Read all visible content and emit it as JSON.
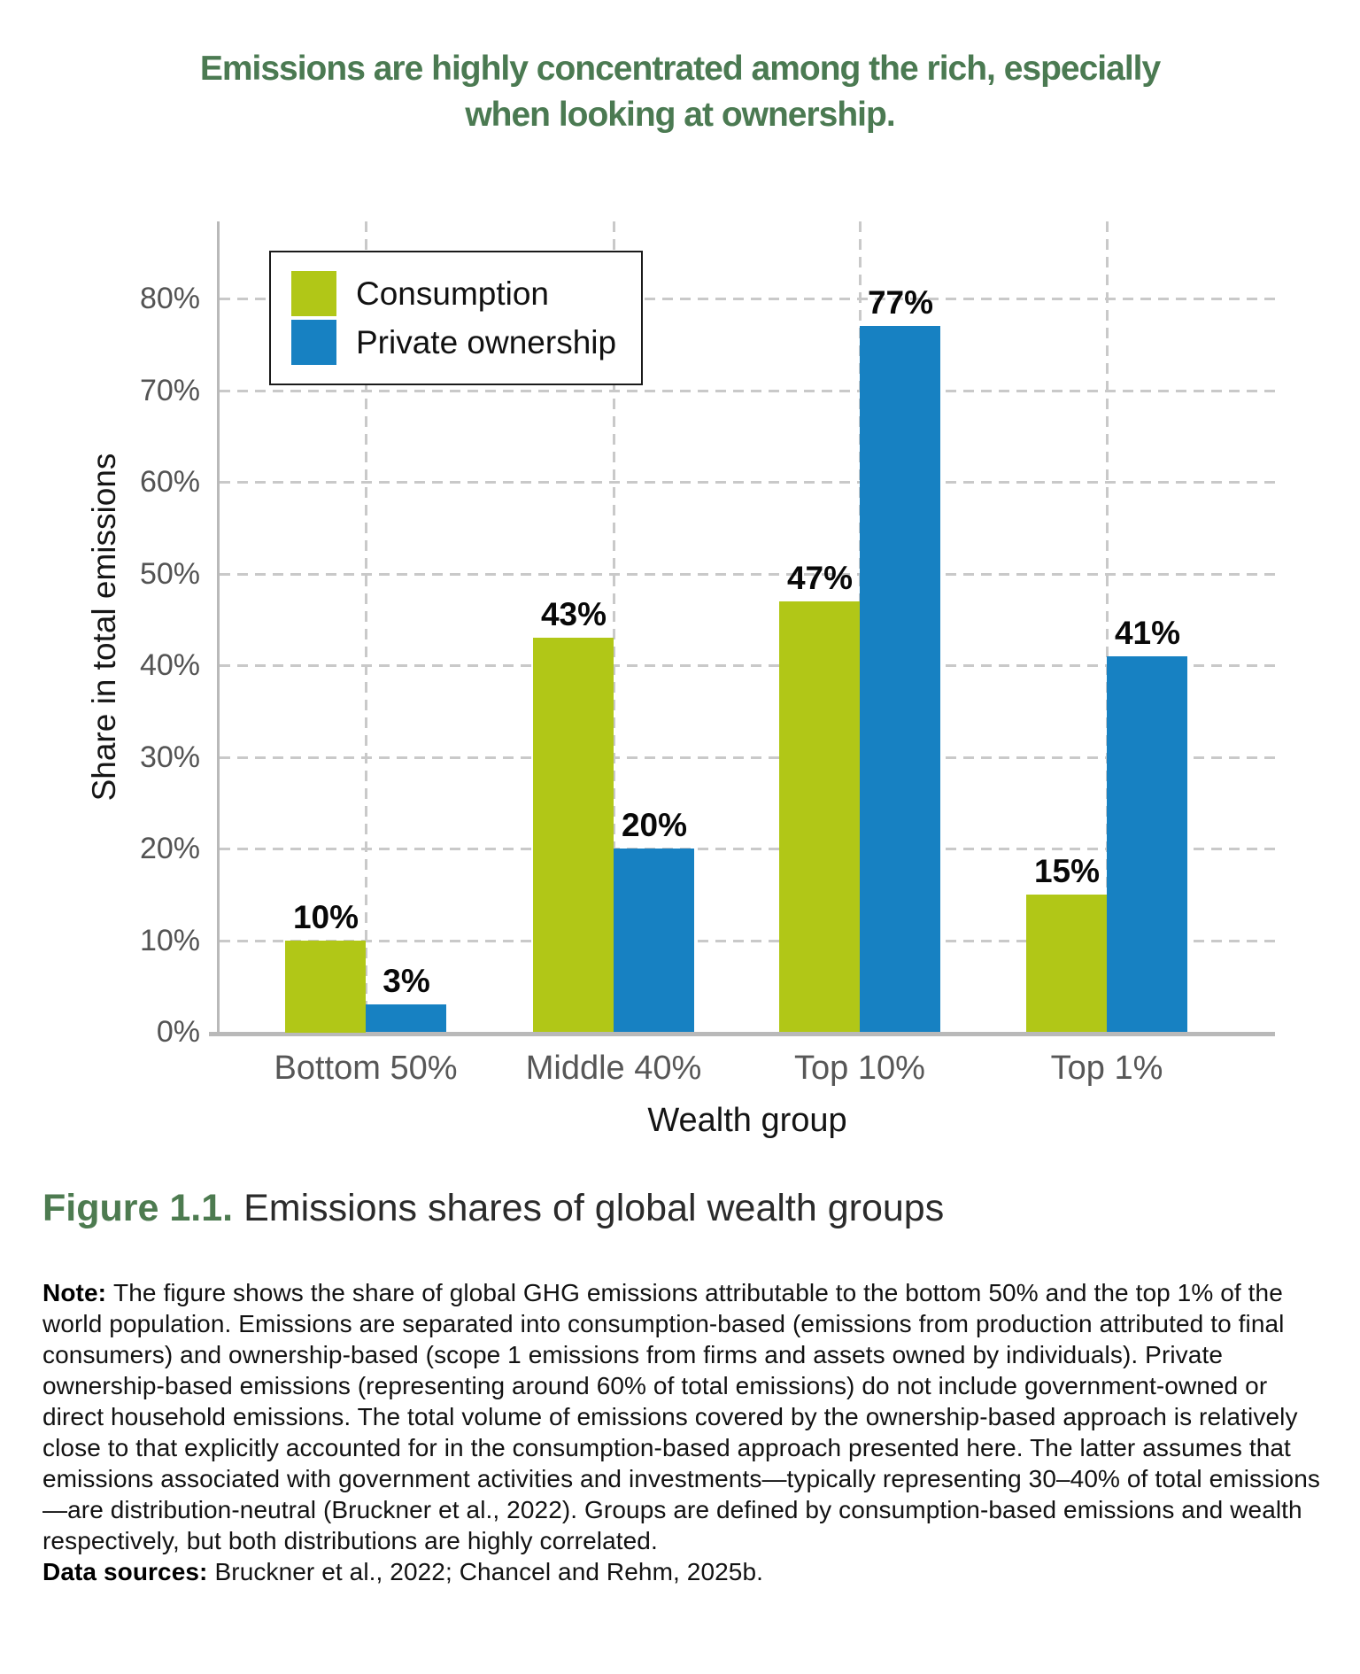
{
  "title": {
    "line1": "Emissions are highly concentrated among the rich, especially",
    "line2": "when looking at ownership."
  },
  "chart_data": {
    "type": "bar",
    "title": "Emissions are highly concentrated among the rich, especially when looking at ownership.",
    "categories": [
      "Bottom 50%",
      "Middle 40%",
      "Top 10%",
      "Top 1%"
    ],
    "series": [
      {
        "name": "Consumption",
        "color": "#b1c717",
        "values": [
          10,
          43,
          47,
          15
        ]
      },
      {
        "name": "Private ownership",
        "color": "#1781c2",
        "values": [
          3,
          20,
          77,
          41
        ]
      }
    ],
    "value_labels": {
      "Consumption": [
        "10%",
        "43%",
        "47%",
        "15%"
      ],
      "Private ownership": [
        "3%",
        "20%",
        "77%",
        "41%"
      ]
    },
    "xlabel": "Wealth group",
    "ylabel": "Share in total emissions",
    "ylim": [
      0,
      88
    ],
    "yticks": [
      0,
      10,
      20,
      30,
      40,
      50,
      60,
      70,
      80
    ],
    "ytick_suffix": "%",
    "grid": "dashed horizontal gridlines at each 10% and dashed vertical gridlines at category centers",
    "legend_position": "top-left inside plot"
  },
  "legend": {
    "items": [
      {
        "label": "Consumption",
        "color": "#b1c717"
      },
      {
        "label": "Private ownership",
        "color": "#1781c2"
      }
    ]
  },
  "caption": {
    "label": "Figure 1.1.",
    "text": "Emissions shares of global wealth groups"
  },
  "note": {
    "label": "Note:",
    "text": "The figure shows the share of global GHG emissions attributable to the bottom 50% and the top 1% of the world population. Emissions are separated into consumption-based (emissions from production attributed to final consumers) and ownership-based (scope 1 emissions from firms and assets owned by individuals). Private ownership-based emissions (representing around 60% of total emissions) do not include government-owned or direct household emissions. The total volume of emissions covered by the ownership-based approach is relatively close to that explicitly accounted for in the consumption-based approach presented here. The latter assumes that emissions associated with government activities and investments—typically representing 30–40% of total emissions—are distribution-neutral (Bruckner et al., 2022). Groups are defined by consumption-based emissions and wealth respectively, but both distributions are highly correlated."
  },
  "data_sources": {
    "label": "Data sources:",
    "text": "Bruckner et al., 2022; Chancel and Rehm, 2025b."
  },
  "colors": {
    "title_green": "#4b7a52",
    "caption_green": "#4d7b50",
    "consumption": "#b1c717",
    "ownership": "#1781c2",
    "gridline": "#c9c9c9",
    "axis_line": "#b9b9b9",
    "tick_text": "#535353",
    "category_text": "#575757",
    "value_label_text": "#080808"
  }
}
